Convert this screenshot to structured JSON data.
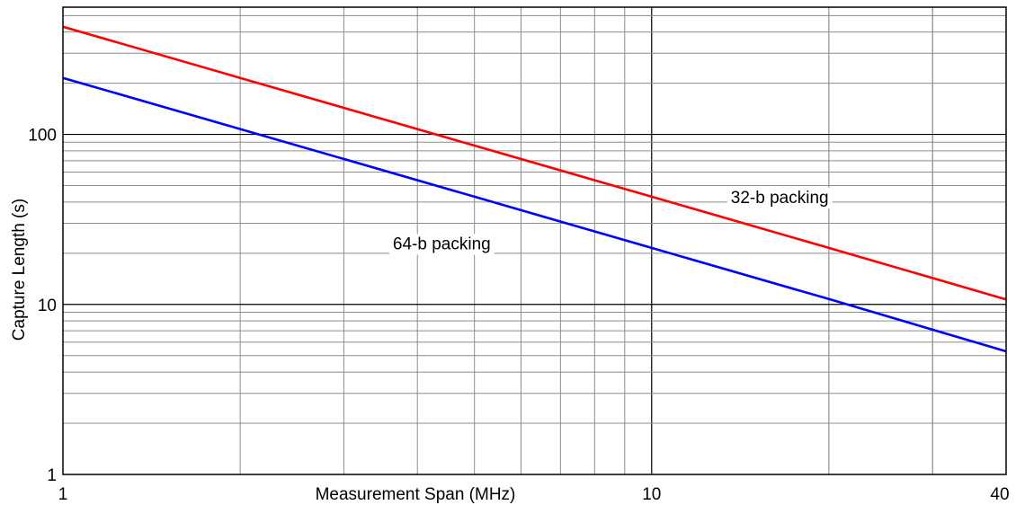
{
  "chart_data": {
    "type": "line",
    "xscale": "log",
    "yscale": "log",
    "xlim": [
      1,
      40
    ],
    "ylim": [
      1,
      560
    ],
    "xlabel": "Measurement Span (MHz)",
    "ylabel": "Capture Length (s)",
    "x_ticks": [
      {
        "value": 1,
        "label": "1"
      },
      {
        "value": 10,
        "label": "10"
      },
      {
        "value": 40,
        "label": "40"
      }
    ],
    "y_ticks": [
      {
        "value": 1,
        "label": "1"
      },
      {
        "value": 10,
        "label": "10"
      },
      {
        "value": 100,
        "label": "100"
      }
    ],
    "grid": true,
    "legend": "none",
    "series": [
      {
        "name": "32-b packing",
        "color": "#ff0000",
        "x": [
          1,
          2,
          5,
          10,
          20,
          40
        ],
        "y": [
          430,
          215,
          86,
          43,
          21.5,
          10.7
        ],
        "label_at": {
          "x": 16.5,
          "y": 43
        }
      },
      {
        "name": "64-b packing",
        "color": "#0000ff",
        "x": [
          1,
          2,
          5,
          10,
          20,
          40
        ],
        "y": [
          215,
          107.5,
          43,
          21.5,
          10.75,
          5.3
        ],
        "label_at": {
          "x": 4.4,
          "y": 23
        }
      }
    ]
  }
}
